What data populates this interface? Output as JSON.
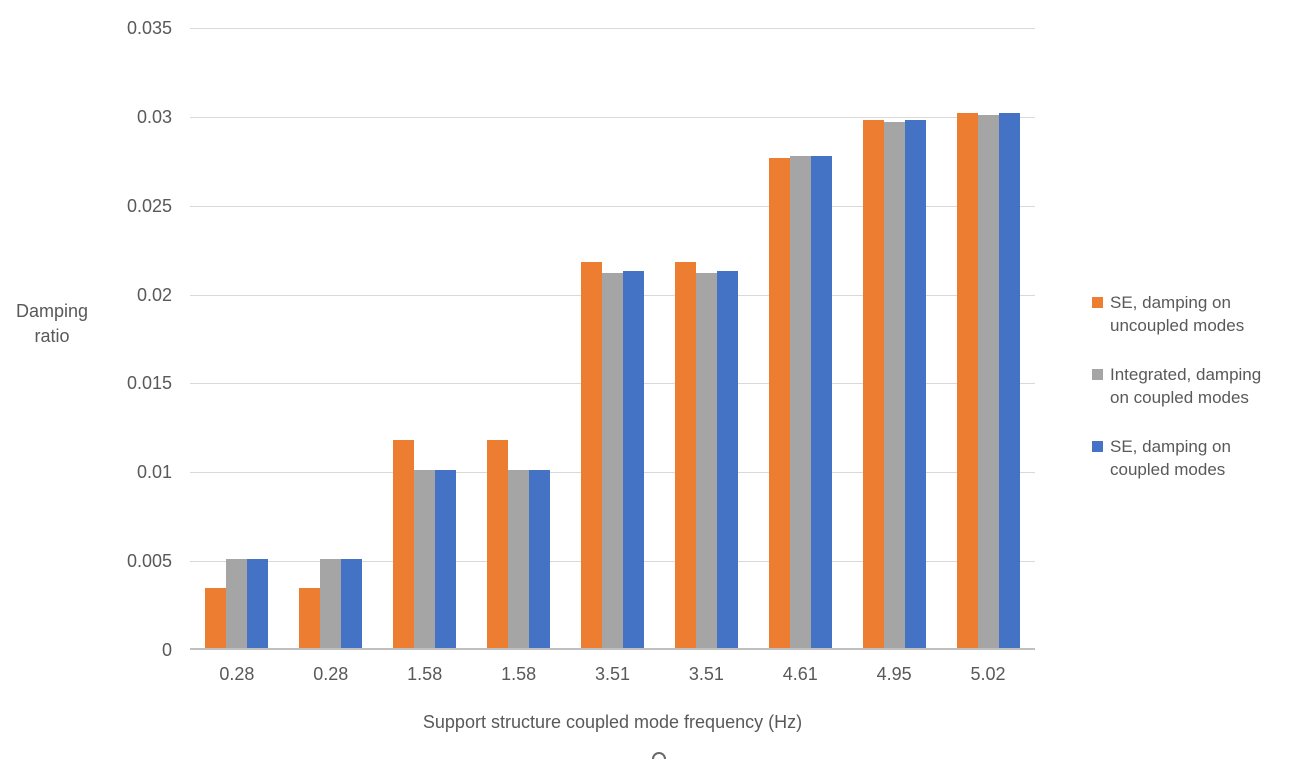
{
  "chart_data": {
    "type": "bar",
    "title": "",
    "xlabel": "Support structure coupled mode frequency (Hz)",
    "ylabel": "Damping ratio",
    "ylabel_line1": "Damping",
    "ylabel_line2": "ratio",
    "categories": [
      "0.28",
      "0.28",
      "1.58",
      "1.58",
      "3.51",
      "3.51",
      "4.61",
      "4.95",
      "5.02"
    ],
    "series": [
      {
        "name": "SE, damping on uncoupled modes",
        "color": "#ED7D31",
        "values": [
          0.0034,
          0.0034,
          0.0117,
          0.0117,
          0.0217,
          0.0217,
          0.0276,
          0.0297,
          0.0301
        ]
      },
      {
        "name": "Integrated, damping on coupled modes",
        "color": "#A5A5A5",
        "values": [
          0.005,
          0.005,
          0.01,
          0.01,
          0.0211,
          0.0211,
          0.0277,
          0.0296,
          0.03
        ]
      },
      {
        "name": "SE, damping on coupled modes",
        "color": "#4472C4",
        "values": [
          0.005,
          0.005,
          0.01,
          0.01,
          0.0212,
          0.0212,
          0.0277,
          0.0297,
          0.0301
        ]
      }
    ],
    "y_axis": {
      "min": 0,
      "max": 0.035,
      "step": 0.005,
      "tick_labels": [
        "0",
        "0.005",
        "0.01",
        "0.015",
        "0.02",
        "0.025",
        "0.03",
        "0.035"
      ]
    },
    "grid": true,
    "legend_position": "right"
  },
  "legend": {
    "items": [
      {
        "label_lines": [
          "SE, damping on",
          "uncoupled modes"
        ],
        "color": "#ED7D31"
      },
      {
        "label_lines": [
          "Integrated, damping",
          "on coupled modes"
        ],
        "color": "#A5A5A5"
      },
      {
        "label_lines": [
          "SE, damping on",
          "coupled modes"
        ],
        "color": "#4472C4"
      }
    ]
  },
  "colors": {
    "series_orange": "#ED7D31",
    "series_gray": "#A5A5A5",
    "series_blue": "#4472C4",
    "text": "#595959",
    "gridline": "#D9D9D9",
    "axis_line": "#BFBFBF",
    "background": "#FFFFFF"
  }
}
